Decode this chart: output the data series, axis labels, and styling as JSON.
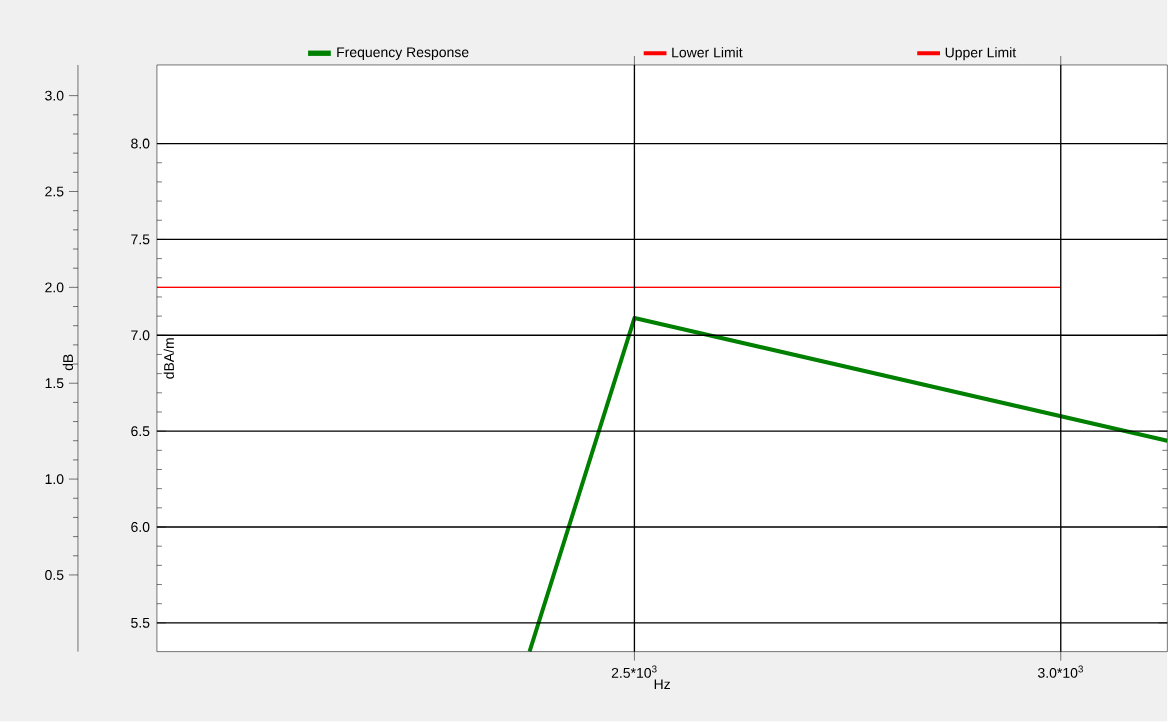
{
  "chart_data": {
    "type": "line",
    "xlabel": "Hz",
    "ylabel": "dBA/m",
    "y2label": "dB",
    "xlim": [
      1940,
      3125
    ],
    "xticks": [
      {
        "value": 2500,
        "label": "2.5*10$^{3}$"
      },
      {
        "value": 3000,
        "label": "3.0*10$^{3}$"
      }
    ],
    "ylim": [
      5.35,
      8.41
    ],
    "yticks": [
      {
        "value": 5.5,
        "label": "5.5"
      },
      {
        "value": 6,
        "label": "6.0"
      },
      {
        "value": 6.5,
        "label": "6.5"
      },
      {
        "value": 7,
        "label": "7.0"
      },
      {
        "value": 7.5,
        "label": "7.5"
      },
      {
        "value": 8,
        "label": "8.0"
      }
    ],
    "y2lim": [
      0.1,
      3.16
    ],
    "y2ticks": [
      {
        "value": 0.5,
        "label": "0.5"
      },
      {
        "value": 1,
        "label": "1.0"
      },
      {
        "value": 1.5,
        "label": "1.5"
      },
      {
        "value": 2,
        "label": "2.0"
      },
      {
        "value": 2.5,
        "label": "2.5"
      },
      {
        "value": 3,
        "label": "3.0"
      }
    ],
    "grid": true,
    "legend": "top",
    "line_style": "solid",
    "series": [
      {
        "name": "Frequency Response",
        "color": "#008000",
        "x": [
          2377,
          2500,
          3125
        ],
        "values": [
          5.35,
          7.09,
          6.45
        ]
      },
      {
        "name": "Lower Limit",
        "color": "#ff0000",
        "axis": "y2",
        "x": [
          1940,
          2500,
          3000
        ],
        "values": [
          2.0,
          2.0,
          2.0
        ]
      },
      {
        "name": "Upper Limit",
        "color": "#ff0000",
        "axis": "y2",
        "x": [
          1940,
          2500,
          3000
        ],
        "values": [
          2.0,
          2.0,
          2.0
        ]
      }
    ]
  }
}
